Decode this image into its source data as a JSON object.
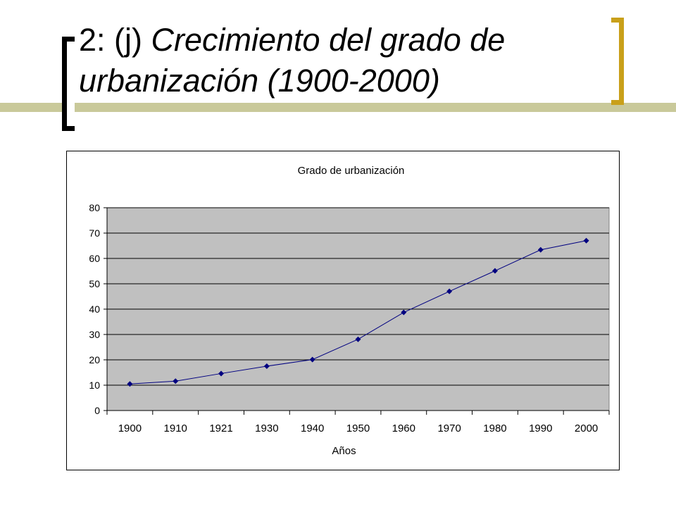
{
  "slide": {
    "title_prefix": "2: (j) ",
    "title_italic_line1": "Crecimiento del grado de",
    "title_italic_line2": "urbanización (1900-2000)"
  },
  "colors": {
    "accent_bar": "#c9c99a",
    "bracket_right": "#c9a01a",
    "plot_area": "#c0c0c0",
    "series_line": "#000080"
  },
  "chart_data": {
    "type": "line",
    "title": "Grado de urbanización",
    "xlabel": "Años",
    "ylabel": "",
    "categories": [
      "1900",
      "1910",
      "1921",
      "1930",
      "1940",
      "1950",
      "1960",
      "1970",
      "1980",
      "1990",
      "2000"
    ],
    "series": [
      {
        "values": [
          10.5,
          11.6,
          14.6,
          17.5,
          20.1,
          28.1,
          38.7,
          47.0,
          55.1,
          63.4,
          67.0
        ]
      }
    ],
    "ylim": [
      0,
      80
    ],
    "yticks": [
      0,
      10,
      20,
      30,
      40,
      50,
      60,
      70,
      80
    ],
    "grid": true,
    "legend": "none"
  }
}
